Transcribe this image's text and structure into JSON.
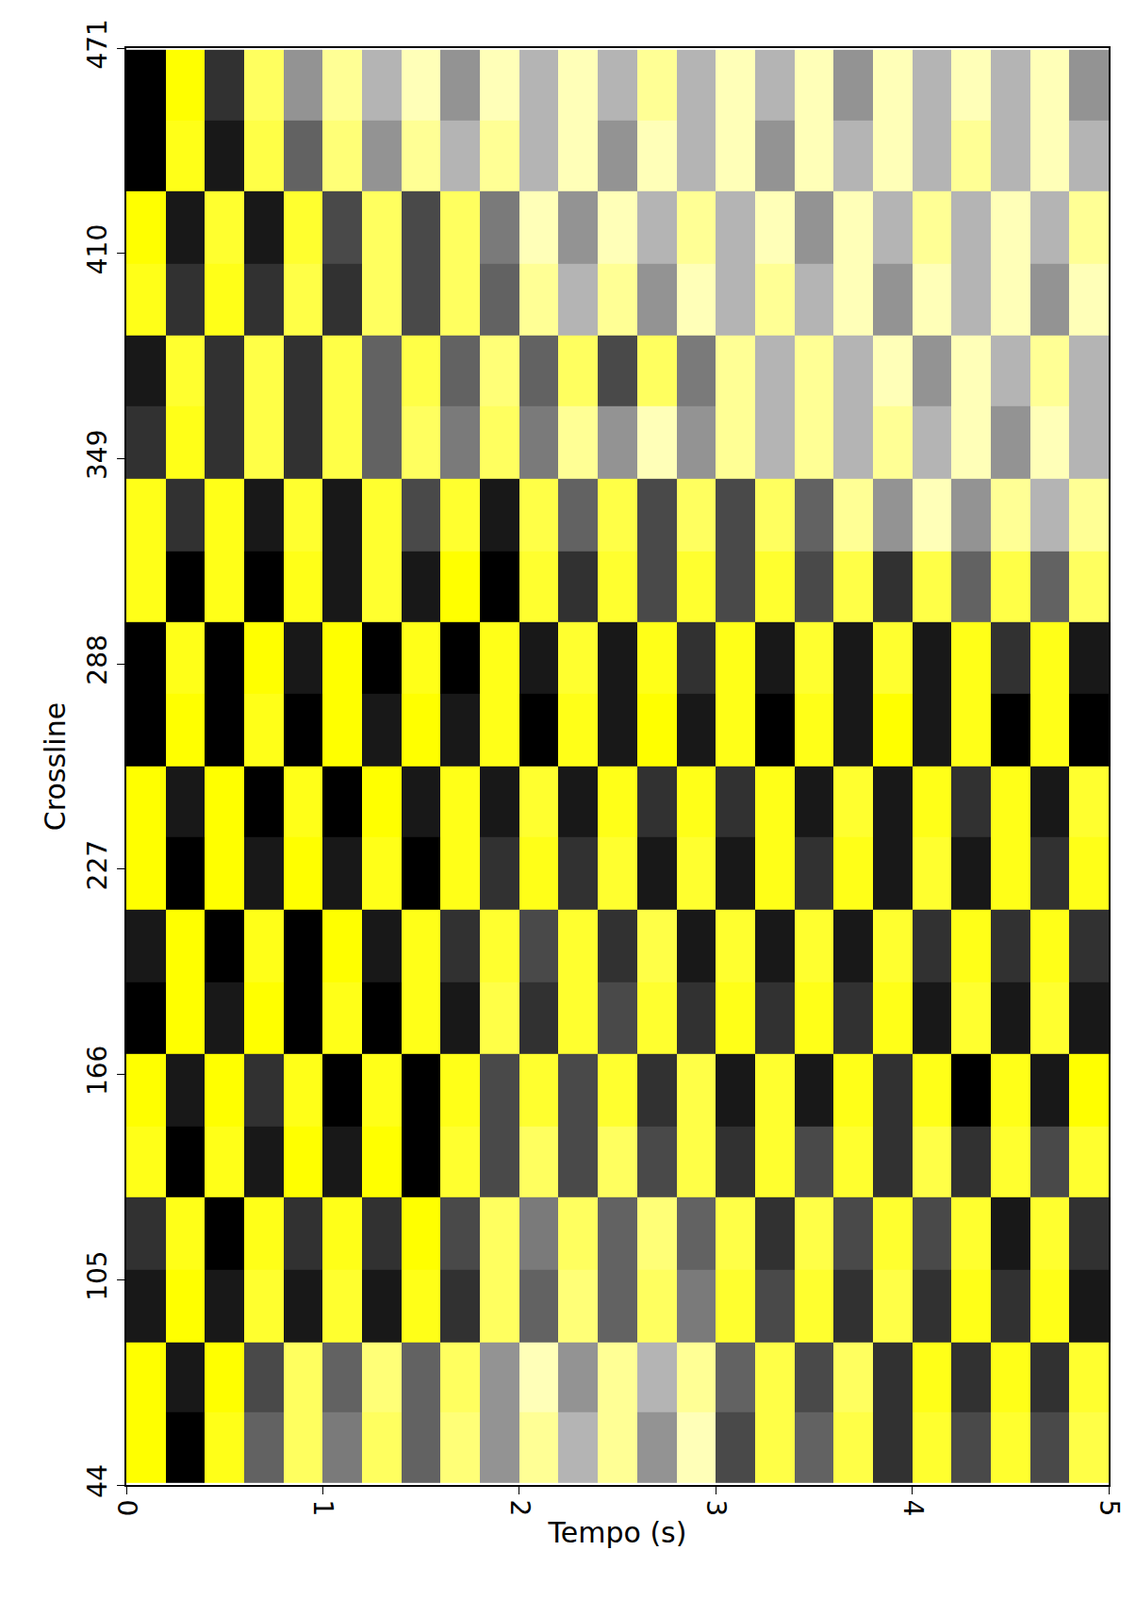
{
  "chart_data": {
    "type": "heatmap",
    "x_label": "Tempo (s)",
    "y_label": "Crossline",
    "x": [
      0.1,
      0.3,
      0.5,
      0.7,
      0.9,
      1.1,
      1.3,
      1.5,
      1.7,
      1.9,
      2.1,
      2.3,
      2.5,
      2.7,
      2.9,
      3.1,
      3.3,
      3.5,
      3.7,
      3.9,
      4.1,
      4.3,
      4.5,
      4.7,
      4.9
    ],
    "y": [
      55,
      76,
      97,
      119,
      140,
      161,
      183,
      204,
      226,
      247,
      268,
      290,
      311,
      332,
      354,
      375,
      396,
      418,
      439,
      460
    ],
    "z": [
      [
        0.9,
        -0.9,
        0.8,
        -0.5,
        0.5,
        -0.4,
        0.5,
        -0.5,
        0.4,
        -0.3,
        0.3,
        -0.2,
        0.3,
        -0.3,
        0.2,
        -0.6,
        0.6,
        -0.5,
        0.6,
        -0.7,
        0.7,
        -0.6,
        0.7,
        -0.6,
        0.6
      ],
      [
        0.9,
        -0.8,
        0.9,
        -0.6,
        0.5,
        -0.5,
        0.4,
        -0.5,
        0.5,
        -0.3,
        0.2,
        -0.3,
        0.3,
        -0.2,
        0.3,
        -0.5,
        0.6,
        -0.6,
        0.5,
        -0.7,
        0.8,
        -0.7,
        0.8,
        -0.7,
        0.7
      ],
      [
        -0.8,
        0.9,
        -0.8,
        0.7,
        -0.8,
        0.7,
        -0.8,
        0.8,
        -0.7,
        0.5,
        -0.5,
        0.4,
        -0.5,
        0.5,
        -0.4,
        0.7,
        -0.6,
        0.7,
        -0.7,
        0.6,
        -0.7,
        0.8,
        -0.7,
        0.8,
        -0.8
      ],
      [
        -0.7,
        0.8,
        -0.9,
        0.8,
        -0.7,
        0.8,
        -0.7,
        0.9,
        -0.6,
        0.5,
        -0.4,
        0.5,
        -0.5,
        0.4,
        -0.5,
        0.6,
        -0.7,
        0.6,
        -0.6,
        0.7,
        -0.6,
        0.7,
        -0.8,
        0.7,
        -0.7
      ],
      [
        0.8,
        -0.9,
        0.8,
        -0.8,
        0.9,
        -0.8,
        0.9,
        -0.9,
        0.7,
        -0.6,
        0.5,
        -0.6,
        0.5,
        -0.6,
        0.6,
        -0.7,
        0.7,
        -0.6,
        0.7,
        -0.7,
        0.6,
        -0.7,
        0.7,
        -0.6,
        0.7
      ],
      [
        0.9,
        -0.8,
        0.9,
        -0.7,
        0.8,
        -0.9,
        0.8,
        -0.9,
        0.8,
        -0.6,
        0.7,
        -0.6,
        0.7,
        -0.7,
        0.6,
        -0.8,
        0.7,
        -0.8,
        0.8,
        -0.7,
        0.8,
        -0.9,
        0.8,
        -0.8,
        0.9
      ],
      [
        -0.9,
        0.9,
        -0.8,
        0.9,
        -0.9,
        0.8,
        -0.9,
        0.8,
        -0.8,
        0.6,
        -0.7,
        0.7,
        -0.6,
        0.7,
        -0.7,
        0.8,
        -0.7,
        0.8,
        -0.7,
        0.8,
        -0.8,
        0.7,
        -0.8,
        0.7,
        -0.8
      ],
      [
        -0.8,
        0.9,
        -0.9,
        0.8,
        -0.9,
        0.9,
        -0.8,
        0.8,
        -0.7,
        0.7,
        -0.6,
        0.7,
        -0.7,
        0.6,
        -0.8,
        0.7,
        -0.8,
        0.7,
        -0.8,
        0.7,
        -0.7,
        0.8,
        -0.7,
        0.8,
        -0.7
      ],
      [
        0.9,
        -0.9,
        0.9,
        -0.8,
        0.9,
        -0.8,
        0.8,
        -0.9,
        0.8,
        -0.7,
        0.8,
        -0.7,
        0.7,
        -0.8,
        0.7,
        -0.8,
        0.8,
        -0.7,
        0.8,
        -0.8,
        0.7,
        -0.8,
        0.8,
        -0.7,
        0.8
      ],
      [
        0.9,
        -0.8,
        0.9,
        -0.9,
        0.8,
        -0.9,
        0.9,
        -0.8,
        0.8,
        -0.8,
        0.7,
        -0.8,
        0.8,
        -0.7,
        0.8,
        -0.7,
        0.8,
        -0.8,
        0.7,
        -0.8,
        0.8,
        -0.7,
        0.8,
        -0.8,
        0.7
      ],
      [
        -0.9,
        0.9,
        -0.9,
        0.8,
        -0.9,
        0.9,
        -0.8,
        0.9,
        -0.8,
        0.8,
        -0.9,
        0.8,
        -0.8,
        0.9,
        -0.8,
        0.8,
        -0.9,
        0.8,
        -0.8,
        0.9,
        -0.8,
        0.8,
        -0.9,
        0.8,
        -0.9
      ],
      [
        -0.9,
        0.8,
        -0.9,
        0.9,
        -0.8,
        0.9,
        -0.9,
        0.8,
        -0.9,
        0.8,
        -0.8,
        0.7,
        -0.8,
        0.8,
        -0.7,
        0.8,
        -0.8,
        0.7,
        -0.8,
        0.7,
        -0.8,
        0.8,
        -0.7,
        0.8,
        -0.8
      ],
      [
        0.8,
        -0.9,
        0.8,
        -0.9,
        0.8,
        -0.8,
        0.7,
        -0.8,
        0.9,
        -0.9,
        0.7,
        -0.7,
        0.7,
        -0.6,
        0.7,
        -0.6,
        0.7,
        -0.6,
        0.6,
        -0.7,
        0.6,
        -0.5,
        0.6,
        -0.5,
        0.5
      ],
      [
        0.8,
        -0.7,
        0.8,
        -0.8,
        0.7,
        -0.8,
        0.7,
        -0.6,
        0.7,
        -0.8,
        0.6,
        -0.5,
        0.6,
        -0.6,
        0.5,
        -0.6,
        0.5,
        -0.5,
        0.3,
        -0.3,
        0.2,
        -0.3,
        0.3,
        -0.2,
        0.3
      ],
      [
        -0.7,
        0.8,
        -0.7,
        0.6,
        -0.7,
        0.6,
        -0.5,
        0.5,
        -0.4,
        0.5,
        -0.4,
        0.3,
        -0.3,
        0.2,
        -0.3,
        0.3,
        -0.2,
        0.3,
        -0.2,
        0.3,
        -0.2,
        0.2,
        -0.3,
        0.2,
        -0.2
      ],
      [
        -0.8,
        0.7,
        -0.7,
        0.6,
        -0.7,
        0.6,
        -0.5,
        0.6,
        -0.5,
        0.4,
        -0.5,
        0.5,
        -0.6,
        0.5,
        -0.4,
        0.3,
        -0.2,
        0.3,
        -0.2,
        0.2,
        -0.3,
        0.2,
        -0.2,
        0.3,
        -0.2
      ],
      [
        0.8,
        -0.7,
        0.8,
        -0.7,
        0.6,
        -0.7,
        0.5,
        -0.6,
        0.5,
        -0.5,
        0.3,
        -0.2,
        0.3,
        -0.3,
        0.2,
        -0.2,
        0.3,
        -0.2,
        0.2,
        -0.3,
        0.2,
        -0.2,
        0.2,
        -0.3,
        0.2
      ],
      [
        0.9,
        -0.8,
        0.7,
        -0.8,
        0.7,
        -0.6,
        0.5,
        -0.6,
        0.5,
        -0.4,
        0.2,
        -0.3,
        0.2,
        -0.2,
        0.3,
        -0.2,
        0.2,
        -0.3,
        0.2,
        -0.2,
        0.3,
        -0.2,
        0.2,
        -0.2,
        0.3
      ],
      [
        -0.9,
        0.8,
        -0.8,
        0.6,
        -0.5,
        0.4,
        -0.3,
        0.3,
        -0.2,
        0.3,
        -0.2,
        0.2,
        -0.3,
        0.2,
        -0.2,
        0.2,
        -0.3,
        0.2,
        -0.2,
        0.2,
        -0.2,
        0.3,
        -0.2,
        0.2,
        -0.2
      ],
      [
        -0.9,
        0.9,
        -0.7,
        0.5,
        -0.3,
        0.3,
        -0.2,
        0.2,
        -0.3,
        0.2,
        -0.2,
        0.2,
        -0.2,
        0.3,
        -0.2,
        0.2,
        -0.2,
        0.2,
        -0.3,
        0.2,
        -0.2,
        0.2,
        -0.2,
        0.2,
        -0.3
      ]
    ],
    "xlim": [
      0,
      5
    ],
    "xticks": [
      0,
      1,
      2,
      3,
      4,
      5
    ],
    "ylim": [
      44,
      471
    ],
    "yticks": [
      44,
      105,
      166,
      227,
      288,
      349,
      410,
      471
    ],
    "grid": false
  }
}
